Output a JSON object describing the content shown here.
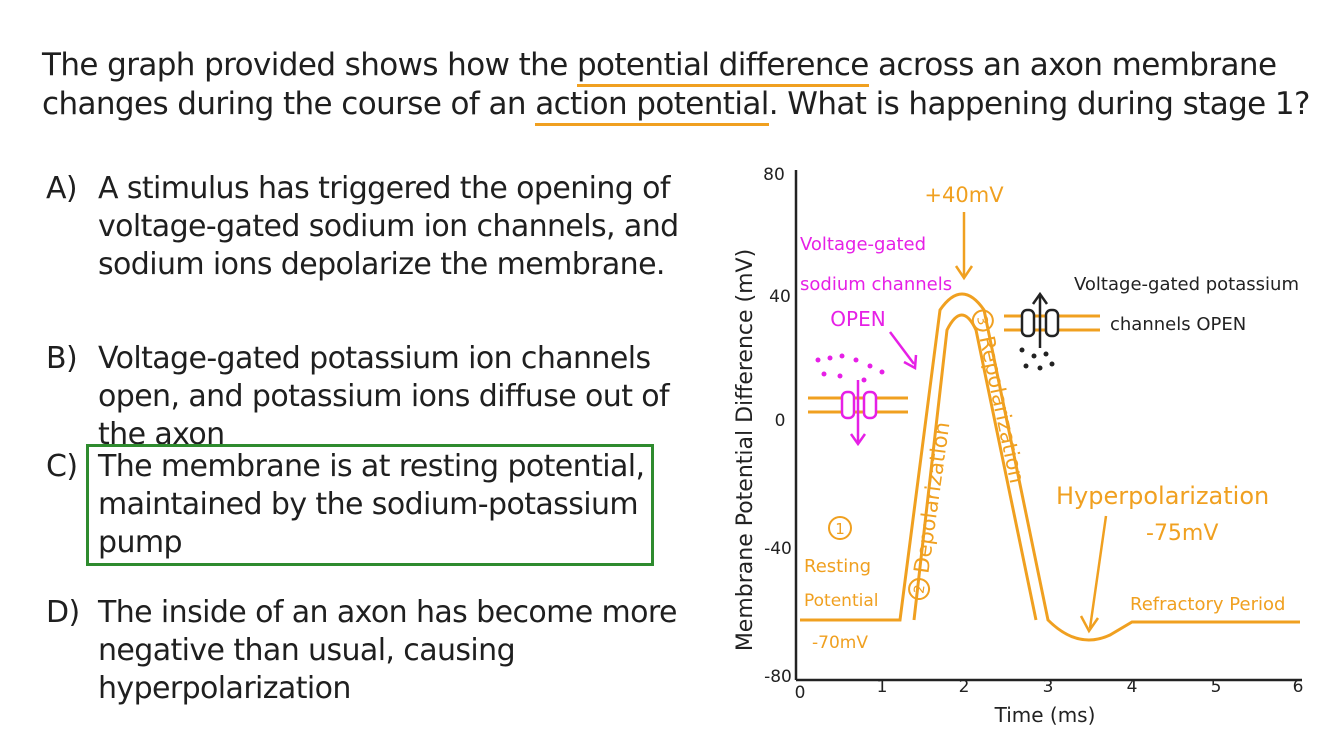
{
  "question": {
    "part1": "The graph provided shows how the ",
    "u1": "potential difference",
    "part2": " across an axon membrane changes during the course of an ",
    "u2": "action potential",
    "part3": ". What is happening during stage 1?"
  },
  "options": {
    "a": {
      "letter": "A)",
      "text": "A stimulus has triggered the opening of voltage-gated sodium ion channels, and sodium ions depolarize the membrane."
    },
    "b": {
      "letter": "B)",
      "text": "Voltage-gated potassium ion channels open, and potassium ions diffuse out of the axon"
    },
    "c": {
      "letter": "C)",
      "text": "The membrane is at resting potential, maintained by the sodium-potassium pump"
    },
    "d": {
      "letter": "D)",
      "text": "The inside of an axon has become more negative than usual, causing hyperpolarization"
    }
  },
  "graph": {
    "y_label": "Membrane Potential Difference (mV)",
    "x_label": "Time (ms)",
    "y_ticks": [
      "80",
      "40",
      "0",
      "-40",
      "-80"
    ],
    "x_ticks": [
      "0",
      "1",
      "2",
      "3",
      "4",
      "5",
      "6"
    ],
    "peak_label": "+40mV",
    "sodium_label": [
      "Voltage-gated",
      "sodium channels",
      "OPEN"
    ],
    "potassium_label": [
      "Voltage-gated potassium",
      "channels OPEN"
    ],
    "stage1_number": "1",
    "stage1_label": [
      "Resting",
      "Potential"
    ],
    "resting_value": "-70mV",
    "stage2": "Depolarization",
    "stage2_number": "2",
    "stage3": "Repolarization",
    "stage3_number": "3",
    "hyper_label": "Hyperpolarization",
    "hyper_value": "-75mV",
    "refractory_label": "Refractory Period",
    "colors": {
      "curve": "#f0a020",
      "sodium": "#e620e6",
      "axis": "#222222",
      "highlight": "#2e8b2e"
    }
  }
}
